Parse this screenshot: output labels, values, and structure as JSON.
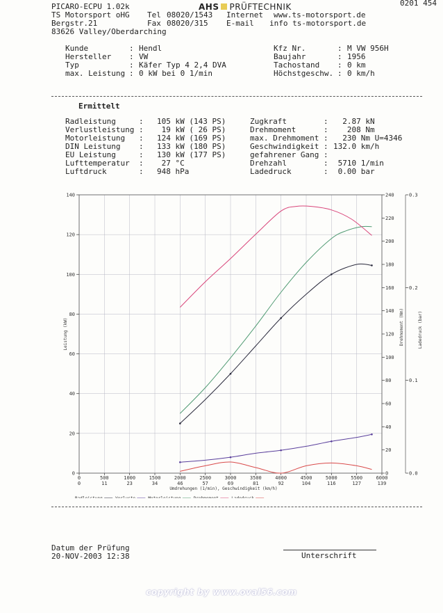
{
  "header": {
    "doc_number": "0201 454",
    "software": "PICARO-ECPU 1.02k",
    "company": "TS Motorsport oHG",
    "street": "Bergstr.21",
    "city": "83626 Valley/Oberdarching",
    "brand_bold": "AHS",
    "brand_rest": "PRÜFTECHNIK",
    "tel_label": "Tel",
    "tel": "08020/1543",
    "fax_label": "Fax",
    "fax": "08020/315",
    "internet_label": "Internet",
    "internet": "www.ts-motorsport.de",
    "email_label": "E-mail",
    "email": "info ts-motorsport.de"
  },
  "vehicle": {
    "left": [
      {
        "label": "Kunde",
        "value": "Hendl"
      },
      {
        "label": "Hersteller",
        "value": "VW"
      },
      {
        "label": "Typ",
        "value": "Käfer Typ 4 2,4 DVA"
      },
      {
        "label": "max. Leistung",
        "value": "0 kW bei 0 1/min"
      }
    ],
    "right": [
      {
        "label": "Kfz Nr.",
        "value": "M VW 956H"
      },
      {
        "label": "Baujahr",
        "value": "1956"
      },
      {
        "label": "Tachostand",
        "value": "0 km"
      },
      {
        "label": "Höchstgeschw.",
        "value": "0 km/h"
      }
    ]
  },
  "results": {
    "heading": "Ermittelt",
    "left": [
      {
        "label": "Radleistung",
        "value": "105 kW (143 PS)"
      },
      {
        "label": "Verlustleistung",
        "value": " 19 kW ( 26 PS)"
      },
      {
        "label": "Motorleistung",
        "value": "124 kW (169 PS)"
      },
      {
        "label": "DIN Leistung",
        "value": "133 kW (180 PS)"
      },
      {
        "label": "EU Leistung",
        "value": "130 kW (177 PS)"
      },
      {
        "label": "Lufttemperatur",
        "value": " 27 °C"
      },
      {
        "label": "Luftdruck",
        "value": "948 hPa"
      }
    ],
    "right": [
      {
        "label": "Zugkraft",
        "value": "  2.87 kN"
      },
      {
        "label": "Drehmoment",
        "value": "   208 Nm"
      },
      {
        "label": "max. Drehmoment",
        "value": "  230 Nm U=4346"
      },
      {
        "label": "Geschwindigkeit",
        "value": "132.0 km/h"
      },
      {
        "label": "gefahrener Gang",
        "value": ""
      },
      {
        "label": "Drehzahl",
        "value": " 5710 1/min"
      },
      {
        "label": "Ladedruck",
        "value": " 0.00 bar"
      }
    ]
  },
  "chart_data": {
    "type": "line",
    "x_label": "Umdrehungen (1/min), Geschwindigkeit (km/h)",
    "y_label_left": "Leistung (kW)",
    "y_label_right1": "Drehmoment (Nm)",
    "y_label_right2": "Ladedruck (bar)",
    "x_ticks_rpm": [
      "0",
      "500",
      "1000",
      "1500",
      "2000",
      "2500",
      "3000",
      "3500",
      "4000",
      "4500",
      "5000",
      "5500",
      "6000"
    ],
    "x_ticks_kmh": [
      "0",
      "11",
      "23",
      "34",
      "46",
      "57",
      "69",
      "81",
      "92",
      "104",
      "116",
      "127",
      "139"
    ],
    "xlim": [
      0,
      6000
    ],
    "ylim_left": [
      0,
      140
    ],
    "y_ticks_left": [
      "0",
      "20",
      "40",
      "60",
      "80",
      "100",
      "120",
      "140"
    ],
    "ylim_torque": [
      0,
      240
    ],
    "y_ticks_torque": [
      "0",
      "20",
      "40",
      "60",
      "80",
      "100",
      "120",
      "140",
      "160",
      "180",
      "200",
      "220",
      "240"
    ],
    "ylim_boost": [
      0,
      0.3
    ],
    "y_ticks_boost": [
      "0.0",
      "0.1",
      "0.2",
      "0.3"
    ],
    "legend": [
      "Radleistung",
      "Verluste",
      "Motorleistung",
      "Drehmoment",
      "Ladedruck"
    ],
    "colors": {
      "radleistung": "#2a2a3c",
      "verluste": "#5a3f9c",
      "motorleistung": "#4f9a72",
      "drehmoment": "#d9457a",
      "ladedruck": "#d94a4a",
      "grid": "#b8b8c4"
    },
    "series": [
      {
        "name": "Radleistung",
        "axis": "left",
        "x": [
          2000,
          2500,
          3000,
          3500,
          4000,
          4500,
          5000,
          5500,
          5800
        ],
        "y": [
          25,
          37,
          50,
          64,
          78,
          90,
          100,
          105,
          104.5
        ]
      },
      {
        "name": "Motorleistung",
        "axis": "left",
        "x": [
          2000,
          2500,
          3000,
          3500,
          4000,
          4500,
          5000,
          5300,
          5600,
          5800
        ],
        "y": [
          30,
          43,
          58,
          74,
          91,
          106,
          118,
          122,
          124,
          124
        ]
      },
      {
        "name": "Verluste",
        "axis": "left",
        "x": [
          2000,
          2500,
          3000,
          3500,
          4000,
          4500,
          5000,
          5500,
          5800
        ],
        "y": [
          5.5,
          6.5,
          8,
          10,
          11.5,
          13.5,
          16,
          18,
          19.5
        ]
      },
      {
        "name": "Drehmoment",
        "axis": "torque",
        "x": [
          2000,
          2500,
          3000,
          3500,
          4000,
          4300,
          4600,
          5000,
          5400,
          5800
        ],
        "y": [
          143,
          165,
          185,
          206,
          226,
          230,
          230,
          227,
          219,
          205
        ]
      },
      {
        "name": "Ladedruck",
        "axis": "boost",
        "x": [
          2000,
          2500,
          3000,
          3500,
          4000,
          4500,
          5000,
          5500,
          5800
        ],
        "y": [
          0.002,
          0.008,
          0.012,
          0.006,
          0.0,
          0.008,
          0.011,
          0.008,
          0.004
        ]
      }
    ]
  },
  "footer": {
    "date_label": "Datum der Prüfung",
    "date": "20-NOV-2003 12:38",
    "signature_label": "Unterschrift",
    "copyright": "copyright by www.oval56.com"
  }
}
